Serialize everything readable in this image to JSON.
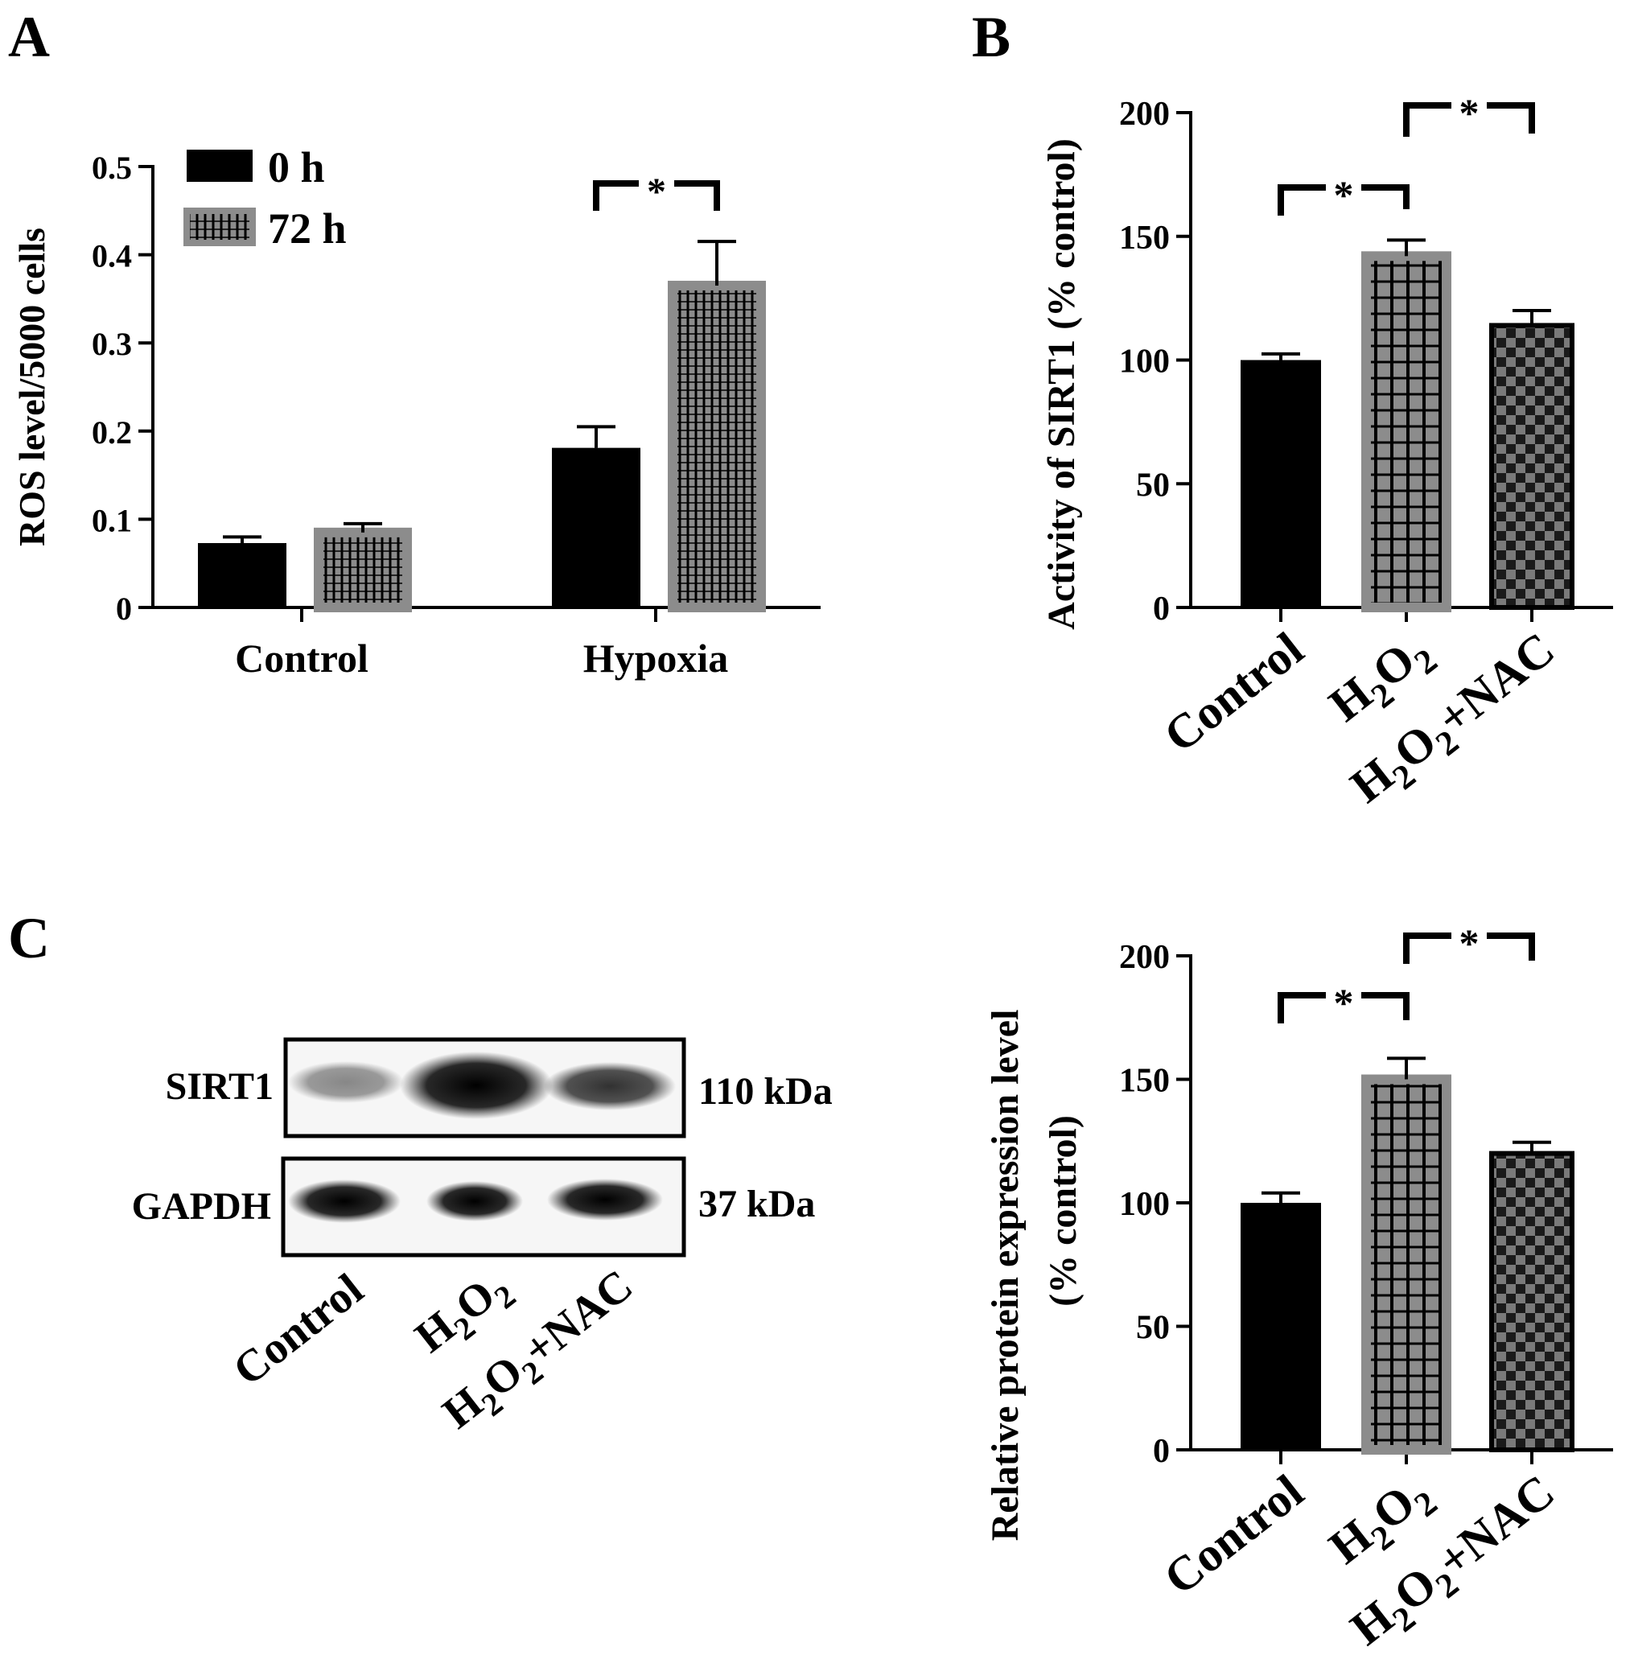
{
  "panels": {
    "a": {
      "letter": "A"
    },
    "b": {
      "letter": "B"
    },
    "c": {
      "letter": "C"
    }
  },
  "blot": {
    "rows": [
      {
        "protein": "SIRT1",
        "size": "110 kDa"
      },
      {
        "protein": "GAPDH",
        "size": "37 kDa"
      }
    ],
    "lanes": [
      "Control",
      "H2O2",
      "H2O2+NAC"
    ]
  },
  "colors": {
    "black_bar": "#000000",
    "gray_bar": "#8c8c8c",
    "checker_dark": "#1a1a1a",
    "checker_light": "#7a7a7a"
  },
  "chart_data": [
    {
      "id": "A",
      "type": "bar",
      "categories": [
        "Control",
        "Hypoxia"
      ],
      "ylabel": "ROS level/5000 cells",
      "xlabel": "",
      "ylim": [
        0,
        0.5
      ],
      "yticks": [
        "0",
        "0.1",
        "0.2",
        "0.3",
        "0.4",
        "0.5"
      ],
      "legend_position": "top-left",
      "series": [
        {
          "name": "0 h",
          "values": [
            0.073,
            0.181
          ],
          "errors": [
            0.007,
            0.024
          ]
        },
        {
          "name": "72 h",
          "values": [
            0.085,
            0.365
          ],
          "errors": [
            0.01,
            0.05
          ]
        }
      ],
      "significance": [
        {
          "label": "*"
        }
      ]
    },
    {
      "id": "B",
      "type": "bar",
      "categories": [
        "Control",
        "H2O2",
        "H2O2+NAC"
      ],
      "ylabel": "Activity of SIRT1 (% control)",
      "xlabel": "",
      "ylim": [
        0,
        200
      ],
      "yticks": [
        "0",
        "50",
        "100",
        "150",
        "200"
      ],
      "values": [
        100,
        142,
        114
      ],
      "errors": [
        2.5,
        6.5,
        6
      ],
      "significance": [
        {
          "label": "*"
        },
        {
          "label": "*"
        }
      ]
    },
    {
      "id": "C",
      "type": "bar",
      "categories": [
        "Control",
        "H2O2",
        "H2O2+NAC"
      ],
      "ylabel": "Relative protein expression level",
      "ylabel2": "(% control)",
      "xlabel": "",
      "ylim": [
        0,
        200
      ],
      "yticks": [
        "0",
        "50",
        "100",
        "150",
        "200"
      ],
      "values": [
        100,
        150,
        120
      ],
      "errors": [
        4,
        8.5,
        4.5
      ],
      "significance": [
        {
          "label": "*"
        },
        {
          "label": "*"
        }
      ]
    }
  ]
}
